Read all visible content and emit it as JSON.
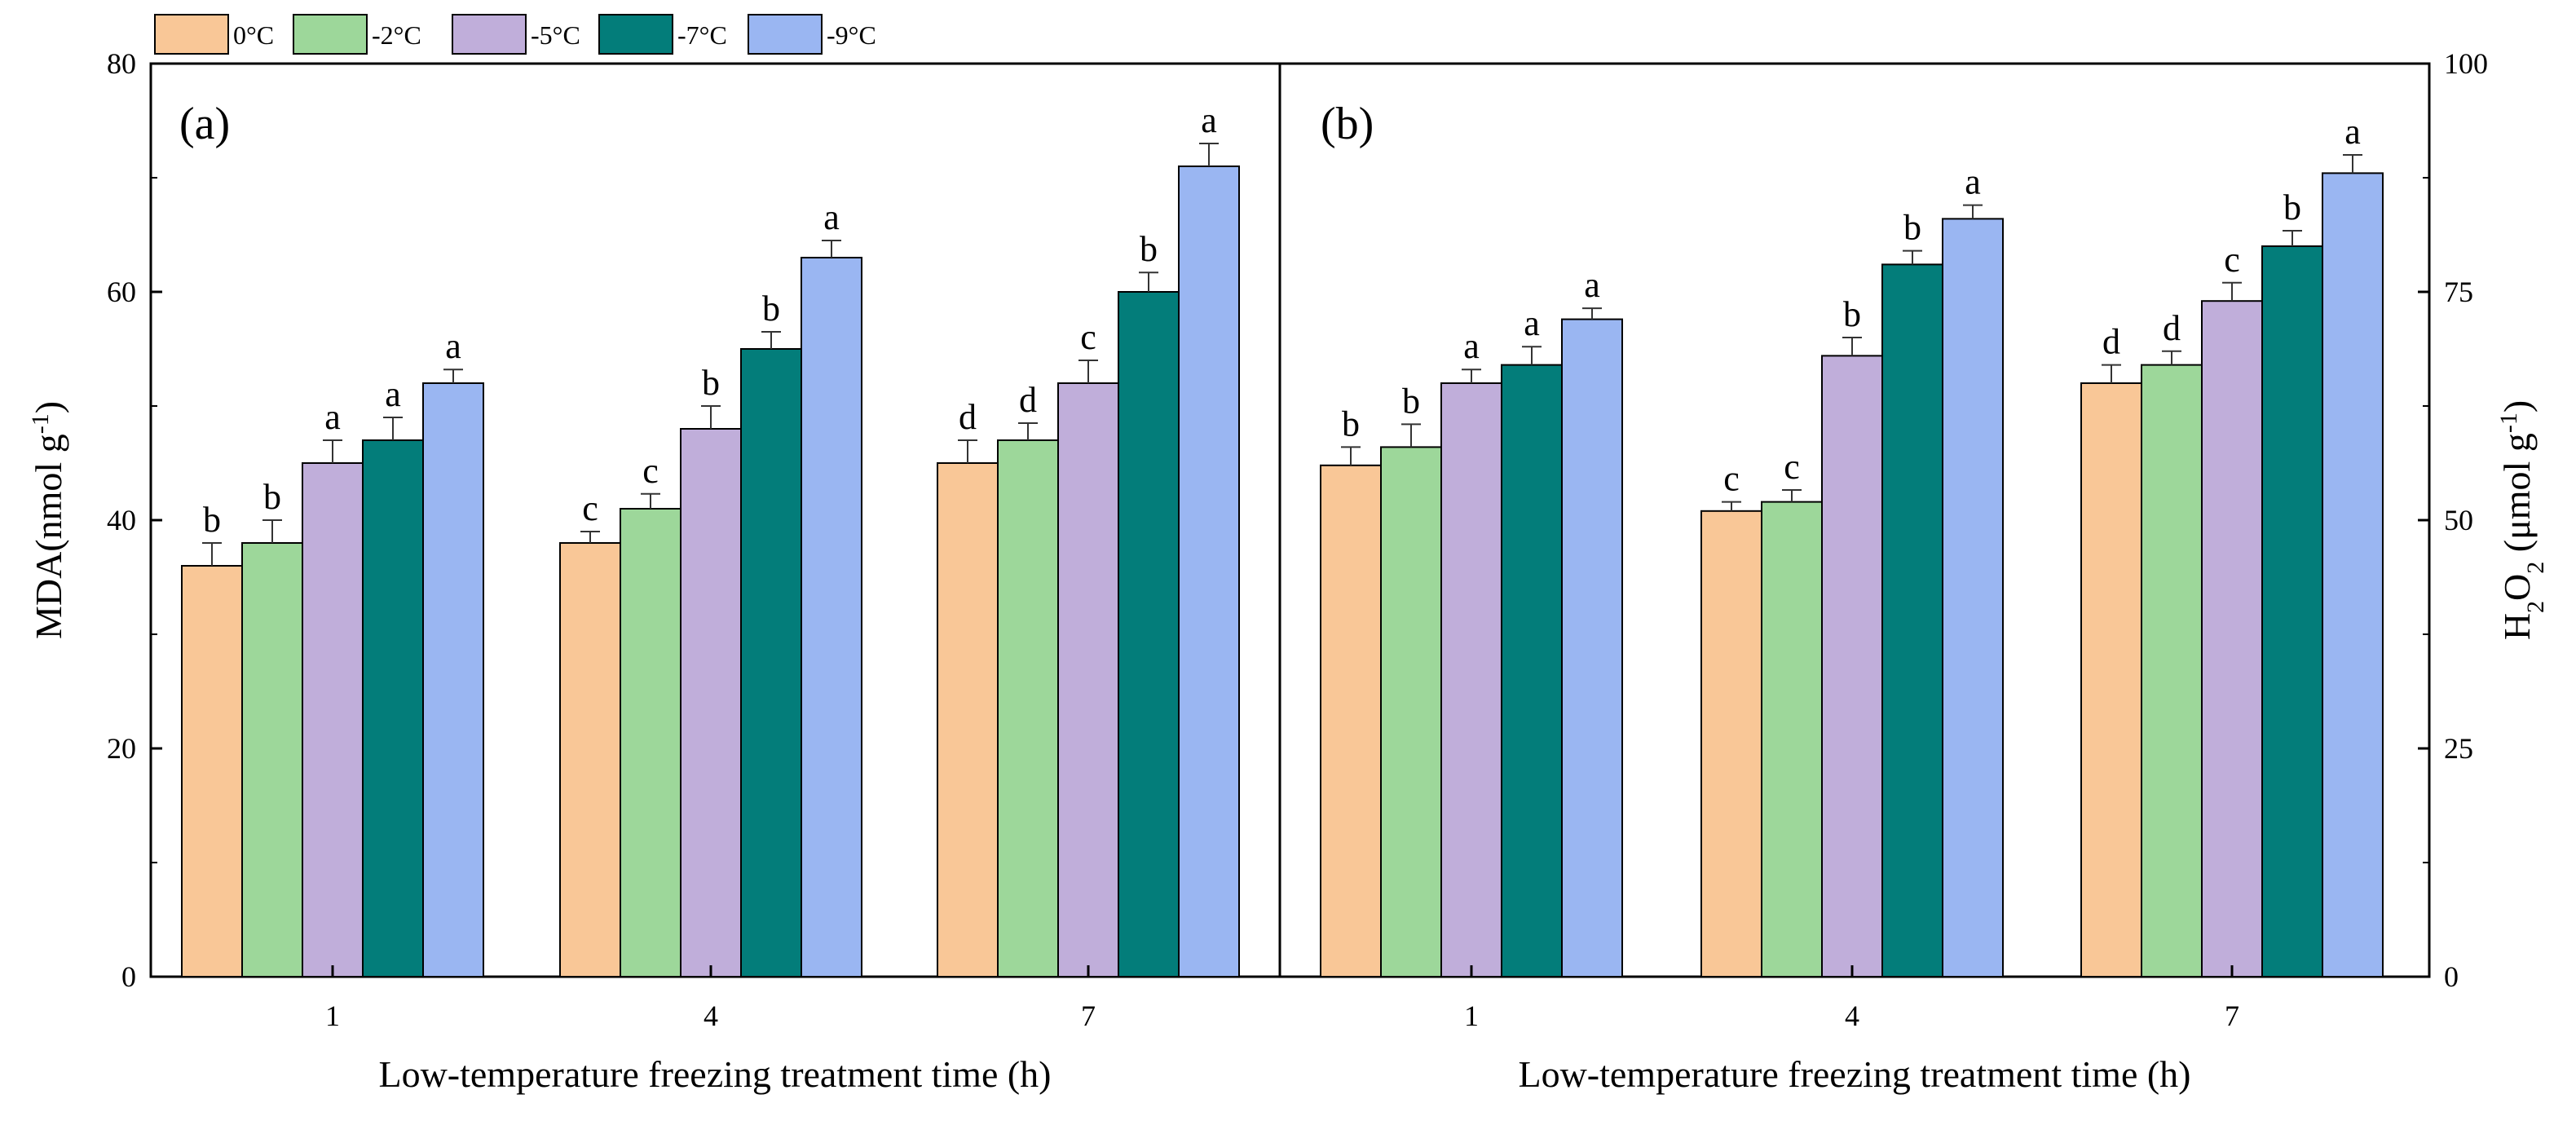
{
  "legend": [
    {
      "label": "0°C",
      "color": "#F9C797"
    },
    {
      "label": "-2°C",
      "color": "#9DD79A"
    },
    {
      "label": "-5°C",
      "color": "#C0AEDA"
    },
    {
      "label": "-7°C",
      "color": "#037D7A"
    },
    {
      "label": "-9°C",
      "color": "#9AB6F2"
    }
  ],
  "chart_data": [
    {
      "type": "bar",
      "panel_label": "(a)",
      "categories": [
        "1",
        "4",
        "7"
      ],
      "xlabel": "Low-temperature freezing treatment time (h)",
      "ylabel": "MDA(nmol g",
      "ylabel_sup": "-1",
      "ylabel_end": ")",
      "ylim": [
        0,
        80
      ],
      "yticks": [
        0,
        20,
        40,
        60,
        80
      ],
      "series": [
        {
          "name": "0°C",
          "values": [
            36,
            38,
            45
          ],
          "errors": [
            2,
            1,
            2
          ],
          "letters": [
            "b",
            "c",
            "d"
          ]
        },
        {
          "name": "-2°C",
          "values": [
            38,
            41,
            47
          ],
          "errors": [
            2,
            1.3,
            1.5
          ],
          "letters": [
            "b",
            "c",
            "d"
          ]
        },
        {
          "name": "-5°C",
          "values": [
            45,
            48,
            52
          ],
          "errors": [
            2,
            2,
            2
          ],
          "letters": [
            "a",
            "b",
            "c"
          ]
        },
        {
          "name": "-7°C",
          "values": [
            47,
            55,
            60
          ],
          "errors": [
            2,
            1.5,
            1.7
          ],
          "letters": [
            "a",
            "b",
            "b"
          ]
        },
        {
          "name": "-9°C",
          "values": [
            52,
            63,
            71
          ],
          "errors": [
            1.2,
            1.5,
            2
          ],
          "letters": [
            "a",
            "a",
            "a"
          ]
        }
      ]
    },
    {
      "type": "bar",
      "panel_label": "(b)",
      "categories": [
        "1",
        "4",
        "7"
      ],
      "xlabel": "Low-temperature freezing treatment time (h)",
      "ylabel": "H",
      "ylabel_sub": "2",
      "ylabel_mid": "O",
      "ylabel_sub2": "2",
      "ylabel_rest": " (μmol g",
      "ylabel_sup": "-1",
      "ylabel_end": ")",
      "ylim": [
        0,
        100
      ],
      "yticks": [
        0,
        25,
        50,
        75,
        100
      ],
      "series": [
        {
          "name": "0°C",
          "values": [
            56,
            51,
            65
          ],
          "errors": [
            2,
            1,
            2
          ],
          "letters": [
            "b",
            "c",
            "d"
          ]
        },
        {
          "name": "-2°C",
          "values": [
            58,
            52,
            67
          ],
          "errors": [
            2.5,
            1.3,
            1.5
          ],
          "letters": [
            "b",
            "c",
            "d"
          ]
        },
        {
          "name": "-5°C",
          "values": [
            65,
            68,
            74
          ],
          "errors": [
            1.5,
            2,
            2
          ],
          "letters": [
            "a",
            "b",
            "c"
          ]
        },
        {
          "name": "-7°C",
          "values": [
            67,
            78,
            80
          ],
          "errors": [
            2,
            1.5,
            1.7
          ],
          "letters": [
            "a",
            "b",
            "b"
          ]
        },
        {
          "name": "-9°C",
          "values": [
            72,
            83,
            88
          ],
          "errors": [
            1.2,
            1.5,
            2
          ],
          "letters": [
            "a",
            "a",
            "a"
          ]
        }
      ]
    }
  ]
}
